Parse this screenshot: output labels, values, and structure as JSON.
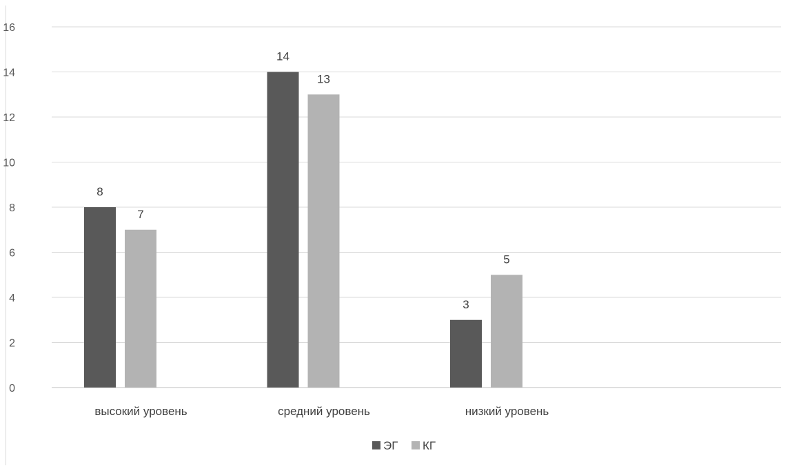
{
  "chart_data": {
    "type": "bar",
    "categories": [
      "высокий уровень",
      "средний уровень",
      "низкий уровень"
    ],
    "series": [
      {
        "name": "ЭГ",
        "values": [
          8,
          14,
          3
        ],
        "color": "#595959"
      },
      {
        "name": "КГ",
        "values": [
          7,
          13,
          5
        ],
        "color": "#b3b3b3"
      }
    ],
    "ylim": [
      0,
      16
    ],
    "yticks": [
      "0",
      "2",
      "4",
      "6",
      "8",
      "10",
      "12",
      "14",
      "16"
    ],
    "grid": true,
    "legend_position": "bottom-center",
    "data_labels": true
  }
}
